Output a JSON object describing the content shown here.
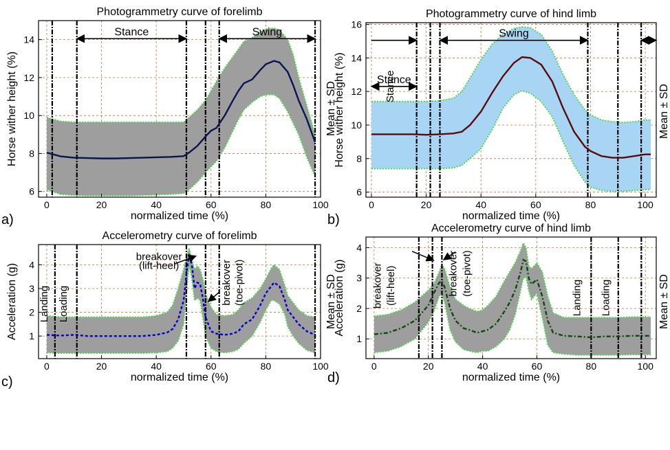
{
  "chart_data": [
    {
      "panel_label": "a)",
      "type": "line",
      "title": "Photogrammetry curve of forelimb",
      "xlabel": "normalized time (%)",
      "ylabel": "Horse wither height (%)",
      "side_label": "Mean ± SD",
      "xlim": [
        -3,
        100
      ],
      "ylim": [
        5.7,
        15
      ],
      "xticks": [
        0,
        20,
        40,
        60,
        80,
        100
      ],
      "yticks": [
        6,
        8,
        10,
        12,
        14
      ],
      "grid": true,
      "colors": {
        "band": "#9e9e9e",
        "mean": "#0a1450",
        "edge": "#4cd64c"
      },
      "x": [
        0,
        5,
        10,
        15,
        20,
        25,
        30,
        35,
        40,
        45,
        50,
        52,
        55,
        58,
        60,
        62,
        65,
        68,
        70,
        72,
        75,
        78,
        80,
        83,
        85,
        88,
        90,
        92,
        95,
        98
      ],
      "series": [
        {
          "values": [
            8.05,
            7.85,
            7.78,
            7.76,
            7.74,
            7.74,
            7.76,
            7.78,
            7.8,
            7.82,
            7.86,
            8.05,
            8.4,
            8.9,
            9.2,
            9.35,
            10.0,
            10.8,
            11.3,
            11.7,
            11.9,
            12.4,
            12.7,
            12.88,
            12.8,
            12.3,
            11.6,
            10.8,
            9.8,
            8.6
          ],
          "role": "mean"
        },
        {
          "values": [
            9.9,
            9.7,
            9.65,
            9.65,
            9.65,
            9.65,
            9.65,
            9.65,
            9.65,
            9.65,
            9.65,
            9.9,
            10.3,
            10.8,
            11.3,
            11.8,
            12.5,
            13.1,
            13.5,
            13.9,
            14.1,
            14.4,
            14.55,
            14.6,
            14.5,
            14.0,
            13.2,
            12.0,
            10.5,
            9.0
          ],
          "role": "upper"
        },
        {
          "values": [
            6.1,
            5.85,
            5.8,
            5.78,
            5.78,
            5.78,
            5.78,
            5.8,
            5.82,
            5.85,
            5.9,
            6.1,
            6.5,
            7.0,
            7.3,
            7.6,
            8.3,
            9.2,
            9.8,
            10.3,
            10.7,
            11.0,
            11.1,
            11.1,
            10.9,
            10.2,
            9.6,
            9.0,
            7.8,
            6.8
          ],
          "role": "lower"
        }
      ],
      "vlines": [
        2,
        11,
        51,
        58,
        63,
        98
      ],
      "annotations": [
        {
          "text": "Stance",
          "x_from": 11,
          "x_to": 51,
          "y": 14.05
        },
        {
          "text": "Swing",
          "x_from": 63,
          "x_to": 98,
          "y": 14.05
        }
      ]
    },
    {
      "panel_label": "b)",
      "type": "line",
      "title": "Photogrammetry curve of hind limb",
      "xlabel": "normalized time (%)",
      "ylabel": "Horse wither height (%)",
      "side_label": "Mean ± SD",
      "xlim": [
        -2,
        104
      ],
      "ylim": [
        5.7,
        16.1
      ],
      "xticks": [
        0,
        20,
        40,
        60,
        80,
        100
      ],
      "yticks": [
        6,
        8,
        10,
        12,
        14,
        16
      ],
      "grid": true,
      "colors": {
        "band": "#a9d5f5",
        "mean": "#5a0a0a",
        "edge": "#4cd64c"
      },
      "x": [
        0,
        5,
        10,
        15,
        20,
        25,
        30,
        33,
        36,
        40,
        44,
        48,
        52,
        55,
        58,
        62,
        66,
        70,
        74,
        78,
        80,
        84,
        88,
        92,
        96,
        100,
        102
      ],
      "series": [
        {
          "values": [
            9.45,
            9.45,
            9.45,
            9.45,
            9.42,
            9.45,
            9.5,
            9.6,
            10.0,
            10.8,
            11.9,
            12.9,
            13.7,
            14.05,
            14.0,
            13.6,
            12.6,
            11.0,
            9.6,
            8.7,
            8.45,
            8.15,
            8.05,
            8.05,
            8.15,
            8.25,
            8.25
          ],
          "role": "mean"
        },
        {
          "values": [
            11.4,
            11.4,
            11.4,
            11.4,
            11.4,
            11.45,
            11.6,
            12.0,
            12.8,
            13.9,
            14.8,
            15.4,
            15.75,
            15.85,
            15.8,
            15.4,
            14.4,
            13.0,
            11.8,
            10.9,
            10.6,
            10.3,
            10.2,
            10.15,
            10.2,
            10.3,
            10.3
          ],
          "role": "upper"
        },
        {
          "values": [
            7.4,
            7.4,
            7.4,
            7.4,
            7.4,
            7.4,
            7.45,
            7.6,
            8.0,
            8.6,
            9.7,
            11.0,
            11.8,
            12.05,
            11.9,
            11.4,
            10.5,
            9.0,
            7.6,
            6.6,
            6.3,
            6.1,
            6.05,
            6.05,
            6.1,
            6.15,
            6.15
          ],
          "role": "lower"
        }
      ],
      "vlines": [
        16.5,
        21.5,
        25,
        79,
        90,
        98.5
      ],
      "annotations": [
        {
          "text": "Stance",
          "rotated": true,
          "x": 8,
          "y": 12.3,
          "x_from": 0,
          "x_to": 16.5,
          "y_arrow": 15.05
        },
        {
          "text": "Swing",
          "x_from": 25,
          "x_to": 79,
          "y": 15.05
        },
        {
          "text": "",
          "x_from": 98.5,
          "x_to": 104,
          "y": 15.05
        }
      ]
    },
    {
      "panel_label": "c)",
      "type": "line",
      "title": "Accelerometry curve of forelimb",
      "xlabel": "normalized time (%)",
      "ylabel": "Acceleration (g)",
      "side_label": "Mean ± SD",
      "xlim": [
        -3,
        100
      ],
      "ylim": [
        0.05,
        4.85
      ],
      "xticks": [
        0,
        20,
        40,
        60,
        80,
        100
      ],
      "yticks": [
        1,
        2,
        3,
        4
      ],
      "grid": true,
      "colors": {
        "band": "#9e9e9e",
        "mean": "#0000c8",
        "edge": "#4cd64c"
      },
      "x": [
        0,
        5,
        10,
        15,
        20,
        25,
        30,
        35,
        40,
        44,
        46,
        48,
        50,
        51,
        52,
        53,
        54,
        55,
        56,
        57,
        58,
        60,
        62,
        65,
        68,
        70,
        72,
        75,
        78,
        80,
        82,
        83,
        85,
        87,
        88,
        90,
        92,
        95,
        98
      ],
      "series": [
        {
          "values": [
            1.05,
            1.02,
            1.05,
            1.0,
            1.0,
            1.0,
            1.0,
            1.0,
            1.05,
            1.15,
            1.3,
            1.7,
            2.5,
            3.6,
            4.45,
            4.0,
            3.0,
            3.25,
            3.2,
            2.6,
            1.8,
            1.2,
            1.1,
            1.05,
            1.1,
            1.2,
            1.5,
            1.7,
            2.3,
            2.8,
            3.1,
            3.25,
            3.1,
            2.5,
            2.1,
            1.8,
            1.5,
            1.2,
            1.05
          ],
          "role": "mean"
        },
        {
          "values": [
            1.85,
            1.8,
            1.8,
            1.8,
            1.8,
            1.8,
            1.8,
            1.8,
            1.85,
            2.0,
            2.3,
            3.0,
            3.8,
            4.3,
            4.7,
            4.2,
            3.8,
            3.95,
            3.8,
            3.4,
            2.8,
            2.2,
            1.9,
            1.85,
            1.9,
            2.1,
            2.4,
            2.6,
            3.0,
            3.4,
            3.85,
            4.0,
            3.8,
            3.1,
            2.7,
            2.4,
            2.1,
            1.85,
            1.8
          ],
          "role": "upper"
        },
        {
          "values": [
            0.3,
            0.28,
            0.28,
            0.28,
            0.28,
            0.28,
            0.28,
            0.28,
            0.3,
            0.35,
            0.5,
            0.8,
            1.5,
            2.8,
            4.0,
            3.4,
            2.5,
            2.6,
            2.5,
            1.8,
            1.0,
            0.5,
            0.35,
            0.3,
            0.35,
            0.45,
            0.7,
            1.0,
            1.6,
            2.1,
            2.5,
            2.5,
            2.35,
            1.9,
            1.4,
            1.0,
            0.7,
            0.4,
            0.3
          ],
          "role": "lower"
        }
      ],
      "vlines": [
        3,
        11,
        51,
        58,
        63,
        98
      ],
      "annotations": [
        {
          "text": "Landing",
          "rotated": true,
          "x": 0.3,
          "y": 2.35
        },
        {
          "text": "Loading",
          "rotated": true,
          "x": 7.3,
          "y": 2.35
        },
        {
          "text": "breakover",
          "x": 41,
          "y": 4.2
        },
        {
          "text": "(lift-heel)",
          "x": 41,
          "y": 3.82
        },
        {
          "text": "breakover",
          "rotated": true,
          "x": 66.8,
          "y": 3.25
        },
        {
          "text": "(toe-pivot)",
          "rotated": true,
          "x": 71.5,
          "y": 3.25
        }
      ],
      "arrows": [
        {
          "from": [
            46.5,
            4.03
          ],
          "to": [
            54.5,
            4.37
          ]
        },
        {
          "from": [
            63,
            2.85
          ],
          "to": [
            59,
            2.45
          ]
        }
      ]
    },
    {
      "panel_label": "d)",
      "type": "line",
      "title": "Accelerometry curve of hind limb",
      "xlabel": "normalized time (%)",
      "ylabel": "Acceleration (g)",
      "side_label": "Mean ± SD",
      "xlim": [
        -3,
        104
      ],
      "ylim": [
        0.35,
        4.35
      ],
      "xticks": [
        0,
        20,
        40,
        60,
        80,
        100
      ],
      "yticks": [
        1,
        2,
        3,
        4
      ],
      "grid": true,
      "colors": {
        "band": "#9e9e9e",
        "mean": "#0a4a0a",
        "edge": "#4cd64c"
      },
      "x": [
        0,
        5,
        10,
        15,
        20,
        22,
        24,
        25,
        26,
        28,
        30,
        33,
        35,
        38,
        40,
        42,
        45,
        48,
        50,
        52,
        54,
        55,
        56,
        57,
        58,
        60,
        62,
        64,
        66,
        70,
        75,
        80,
        85,
        90,
        95,
        100,
        102
      ],
      "series": [
        {
          "values": [
            1.15,
            1.2,
            1.35,
            1.6,
            2.1,
            2.5,
            2.85,
            2.9,
            2.7,
            2.0,
            1.6,
            1.35,
            1.3,
            1.2,
            1.25,
            1.3,
            1.5,
            1.9,
            2.2,
            2.6,
            3.2,
            3.6,
            3.55,
            3.0,
            2.8,
            2.95,
            2.4,
            1.6,
            1.2,
            1.1,
            1.08,
            1.05,
            1.08,
            1.08,
            1.1,
            1.1,
            1.1
          ],
          "role": "mean"
        },
        {
          "values": [
            1.75,
            1.8,
            1.95,
            2.2,
            2.6,
            2.8,
            3.2,
            3.45,
            3.3,
            2.7,
            2.3,
            2.1,
            2.0,
            1.9,
            1.95,
            2.1,
            2.4,
            2.9,
            3.2,
            3.5,
            3.9,
            4.15,
            4.0,
            3.4,
            3.3,
            3.5,
            3.2,
            2.4,
            1.85,
            1.7,
            1.7,
            1.7,
            1.7,
            1.7,
            1.72,
            1.72,
            1.72
          ],
          "role": "upper"
        },
        {
          "values": [
            0.55,
            0.6,
            0.75,
            1.0,
            1.55,
            1.9,
            2.4,
            2.5,
            2.2,
            1.3,
            0.9,
            0.65,
            0.6,
            0.55,
            0.6,
            0.6,
            0.75,
            1.0,
            1.3,
            1.8,
            2.6,
            3.0,
            3.05,
            2.6,
            2.3,
            2.5,
            1.7,
            0.8,
            0.55,
            0.5,
            0.47,
            0.47,
            0.47,
            0.47,
            0.48,
            0.48,
            0.48
          ],
          "role": "lower"
        }
      ],
      "vlines": [
        16.5,
        21.5,
        25,
        80,
        90,
        98.5
      ],
      "annotations": [
        {
          "text": "breakover",
          "rotated": true,
          "x": 2.4,
          "y": 2.75
        },
        {
          "text": "(lift-heel)",
          "rotated": true,
          "x": 7.4,
          "y": 2.75
        },
        {
          "text": "breakover",
          "rotated": true,
          "x": 30.4,
          "y": 3.15
        },
        {
          "text": "(toe-pivot)",
          "rotated": true,
          "x": 35.4,
          "y": 3.15
        },
        {
          "text": "Landing",
          "rotated": true,
          "x": 76,
          "y": 2.35
        },
        {
          "text": "Loading",
          "rotated": true,
          "x": 86.6,
          "y": 2.35
        }
      ],
      "arrows": [
        {
          "from": [
            14,
            3.88
          ],
          "to": [
            22,
            3.58
          ]
        },
        {
          "from": [
            30,
            3.86
          ],
          "to": [
            25.6,
            3.6
          ]
        }
      ]
    }
  ]
}
